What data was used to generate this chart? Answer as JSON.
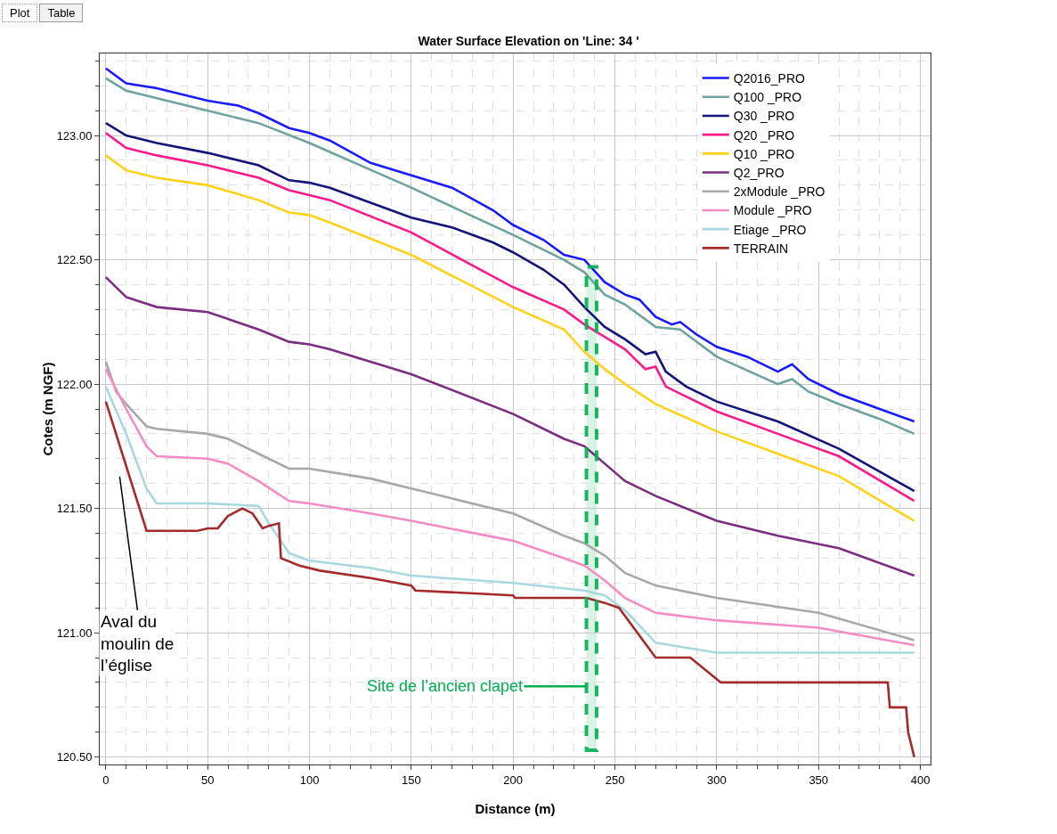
{
  "chart_data": {
    "type": "line",
    "title": "Water Surface Elevation on 'Line: 34 '",
    "xlabel": "Distance (m)",
    "ylabel": "Cotes (m NGF)",
    "xlim": [
      -3,
      405
    ],
    "xticks": [
      0,
      50,
      100,
      150,
      200,
      250,
      300,
      350,
      400
    ],
    "ylim": [
      120.47,
      123.33
    ],
    "yticks": [
      {
        "value": 120.5,
        "label": "120.50"
      },
      {
        "value": 121,
        "label": "121.00"
      },
      {
        "value": 121.5,
        "label": "121.50"
      },
      {
        "value": 122,
        "label": "122.00"
      },
      {
        "value": 122.5,
        "label": "122.50"
      },
      {
        "value": 123,
        "label": "123.00"
      }
    ],
    "grid": true,
    "legend": "top right",
    "marker": "none",
    "line_style": "solid",
    "series": [
      {
        "name": "Q2016_PRO",
        "color": "#1a1aff",
        "x": [
          0,
          10,
          25,
          50,
          65,
          75,
          90,
          100,
          110,
          130,
          150,
          170,
          190,
          200,
          215,
          225,
          235,
          245,
          255,
          262,
          270,
          278,
          282,
          290,
          300,
          315,
          330,
          337,
          345,
          360,
          380,
          397
        ],
        "values": [
          123.27,
          123.21,
          123.19,
          123.14,
          123.12,
          123.09,
          123.03,
          123.01,
          122.98,
          122.89,
          122.84,
          122.79,
          122.7,
          122.64,
          122.58,
          122.52,
          122.5,
          122.41,
          122.36,
          122.34,
          122.27,
          122.24,
          122.25,
          122.2,
          122.15,
          122.11,
          122.05,
          122.08,
          122.02,
          121.96,
          121.9,
          121.85
        ]
      },
      {
        "name": "Q100 _PRO",
        "color": "#6fa3a0",
        "x": [
          0,
          10,
          50,
          75,
          100,
          150,
          200,
          225,
          235,
          245,
          255,
          270,
          282,
          300,
          330,
          337,
          345,
          360,
          380,
          397
        ],
        "values": [
          123.23,
          123.18,
          123.1,
          123.05,
          122.97,
          122.79,
          122.6,
          122.5,
          122.45,
          122.36,
          122.32,
          122.23,
          122.22,
          122.11,
          122,
          122.02,
          121.97,
          121.92,
          121.86,
          121.8
        ]
      },
      {
        "name": "Q30 _PRO",
        "color": "#14147a",
        "x": [
          0,
          10,
          25,
          50,
          75,
          90,
          100,
          110,
          130,
          150,
          170,
          190,
          200,
          215,
          225,
          235,
          245,
          255,
          265,
          270,
          275,
          285,
          300,
          330,
          360,
          397
        ],
        "values": [
          123.05,
          123,
          122.97,
          122.93,
          122.88,
          122.82,
          122.81,
          122.79,
          122.73,
          122.67,
          122.63,
          122.57,
          122.53,
          122.46,
          122.4,
          122.31,
          122.23,
          122.18,
          122.12,
          122.13,
          122.05,
          121.99,
          121.93,
          121.85,
          121.74,
          121.57
        ]
      },
      {
        "name": "Q20 _PRO",
        "color": "#ff1a8c",
        "x": [
          0,
          10,
          25,
          50,
          75,
          90,
          100,
          110,
          150,
          200,
          225,
          235,
          245,
          255,
          265,
          270,
          275,
          300,
          330,
          360,
          397
        ],
        "values": [
          123.01,
          122.95,
          122.92,
          122.88,
          122.83,
          122.78,
          122.76,
          122.74,
          122.61,
          122.39,
          122.3,
          122.24,
          122.19,
          122.14,
          122.06,
          122.07,
          121.99,
          121.89,
          121.8,
          121.71,
          121.53
        ]
      },
      {
        "name": "Q10 _PRO",
        "color": "#ffd21a",
        "x": [
          0,
          10,
          25,
          50,
          75,
          90,
          100,
          110,
          150,
          200,
          225,
          235,
          245,
          255,
          270,
          300,
          330,
          360,
          397
        ],
        "values": [
          122.92,
          122.86,
          122.83,
          122.8,
          122.74,
          122.69,
          122.68,
          122.65,
          122.52,
          122.31,
          122.22,
          122.13,
          122.06,
          122,
          121.92,
          121.81,
          121.72,
          121.63,
          121.45
        ]
      },
      {
        "name": "Q2_PRO",
        "color": "#7b2d80",
        "x": [
          0,
          10,
          25,
          50,
          75,
          90,
          100,
          110,
          150,
          200,
          225,
          235,
          245,
          255,
          270,
          300,
          330,
          360,
          397
        ],
        "values": [
          122.43,
          122.35,
          122.31,
          122.29,
          122.22,
          122.17,
          122.16,
          122.14,
          122.04,
          121.88,
          121.78,
          121.75,
          121.68,
          121.61,
          121.55,
          121.45,
          121.39,
          121.34,
          121.23
        ]
      },
      {
        "name": "2xModule _PRO",
        "color": "#a8a8a8",
        "x": [
          0,
          5,
          10,
          20,
          25,
          50,
          60,
          75,
          90,
          100,
          130,
          150,
          200,
          225,
          235,
          245,
          255,
          270,
          300,
          350,
          397
        ],
        "values": [
          122.09,
          121.97,
          121.92,
          121.83,
          121.82,
          121.8,
          121.78,
          121.72,
          121.66,
          121.66,
          121.62,
          121.58,
          121.48,
          121.39,
          121.36,
          121.31,
          121.24,
          121.19,
          121.14,
          121.08,
          120.97
        ]
      },
      {
        "name": "Module _PRO",
        "color": "#f58cc4",
        "x": [
          0,
          10,
          20,
          25,
          50,
          60,
          75,
          90,
          100,
          130,
          150,
          200,
          225,
          235,
          245,
          255,
          270,
          300,
          350,
          397
        ],
        "values": [
          122.06,
          121.9,
          121.75,
          121.71,
          121.7,
          121.68,
          121.61,
          121.53,
          121.52,
          121.48,
          121.45,
          121.37,
          121.3,
          121.27,
          121.21,
          121.14,
          121.08,
          121.05,
          121.02,
          120.95
        ]
      },
      {
        "name": "Etiage _PRO",
        "color": "#a8d8e0",
        "x": [
          0,
          10,
          20,
          25,
          50,
          75,
          80,
          85,
          90,
          100,
          130,
          150,
          200,
          235,
          245,
          255,
          270,
          300,
          397
        ],
        "values": [
          121.99,
          121.8,
          121.58,
          121.52,
          121.52,
          121.51,
          121.44,
          121.38,
          121.32,
          121.29,
          121.26,
          121.23,
          121.2,
          121.17,
          121.15,
          121.09,
          120.96,
          120.92,
          120.92
        ]
      },
      {
        "name": "TERRAIN",
        "color": "#a52a2a",
        "x": [
          0,
          20,
          45,
          50,
          55,
          60,
          67,
          72,
          77,
          80,
          85,
          86,
          95,
          105,
          130,
          150,
          152,
          200,
          201,
          236,
          245,
          252,
          270,
          287,
          302,
          384,
          385,
          393,
          394,
          397
        ],
        "values": [
          121.93,
          121.41,
          121.41,
          121.42,
          121.42,
          121.47,
          121.5,
          121.48,
          121.42,
          121.43,
          121.44,
          121.3,
          121.27,
          121.25,
          121.22,
          121.19,
          121.17,
          121.15,
          121.14,
          121.14,
          121.12,
          121.1,
          120.9,
          120.9,
          120.8,
          120.8,
          120.7,
          120.7,
          120.6,
          120.5
        ]
      }
    ],
    "bands": [
      {
        "axis": "x",
        "from": 236,
        "to": 241,
        "label": "Site de l’ancien clapet",
        "color": "#00b050"
      }
    ],
    "annotations": [
      "Plot",
      "Table",
      "Aval du moulin de l’église"
    ]
  }
}
